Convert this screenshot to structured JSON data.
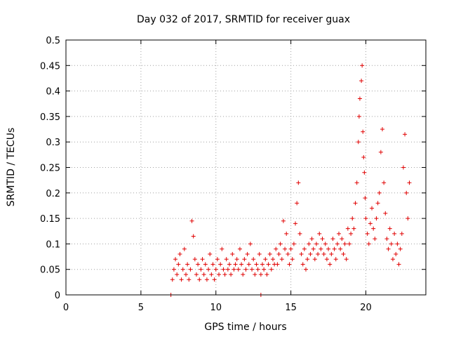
{
  "chart_data": {
    "type": "scatter",
    "title": "Day 032 of 2017, SRMTID for receiver guax",
    "xlabel": "GPS time / hours",
    "ylabel": "SRMTID / TECUs",
    "xlim": [
      0,
      24
    ],
    "ylim": [
      0,
      0.5
    ],
    "x_ticks": [
      0,
      5,
      10,
      15,
      20
    ],
    "y_ticks": [
      0,
      0.05,
      0.1,
      0.15,
      0.2,
      0.25,
      0.3,
      0.35,
      0.4,
      0.45,
      0.5
    ],
    "x_tick_labels": [
      "0",
      "5",
      "10",
      "15",
      "20"
    ],
    "y_tick_labels": [
      "0",
      "0.05",
      "0.1",
      "0.15",
      "0.2",
      "0.25",
      "0.3",
      "0.35",
      "0.4",
      "0.45",
      "0.5"
    ],
    "grid": true,
    "marker": "+",
    "color": "#e00000",
    "series": [
      {
        "name": "SRMTID",
        "points": [
          [
            7.0,
            0.0
          ],
          [
            13.0,
            0.0
          ],
          [
            7.1,
            0.03
          ],
          [
            7.2,
            0.05
          ],
          [
            7.3,
            0.07
          ],
          [
            7.4,
            0.04
          ],
          [
            7.5,
            0.06
          ],
          [
            7.6,
            0.08
          ],
          [
            7.7,
            0.03
          ],
          [
            7.8,
            0.05
          ],
          [
            7.9,
            0.09
          ],
          [
            8.0,
            0.04
          ],
          [
            8.1,
            0.06
          ],
          [
            8.2,
            0.03
          ],
          [
            8.3,
            0.05
          ],
          [
            8.4,
            0.145
          ],
          [
            8.5,
            0.115
          ],
          [
            8.6,
            0.07
          ],
          [
            8.7,
            0.04
          ],
          [
            8.8,
            0.06
          ],
          [
            8.9,
            0.03
          ],
          [
            9.0,
            0.05
          ],
          [
            9.1,
            0.07
          ],
          [
            9.2,
            0.04
          ],
          [
            9.3,
            0.06
          ],
          [
            9.4,
            0.03
          ],
          [
            9.5,
            0.05
          ],
          [
            9.6,
            0.08
          ],
          [
            9.7,
            0.04
          ],
          [
            9.8,
            0.06
          ],
          [
            9.9,
            0.03
          ],
          [
            10.0,
            0.05
          ],
          [
            10.1,
            0.07
          ],
          [
            10.2,
            0.04
          ],
          [
            10.3,
            0.06
          ],
          [
            10.4,
            0.09
          ],
          [
            10.5,
            0.05
          ],
          [
            10.6,
            0.04
          ],
          [
            10.7,
            0.07
          ],
          [
            10.8,
            0.05
          ],
          [
            10.9,
            0.06
          ],
          [
            11.0,
            0.04
          ],
          [
            11.1,
            0.08
          ],
          [
            11.2,
            0.05
          ],
          [
            11.3,
            0.06
          ],
          [
            11.4,
            0.07
          ],
          [
            11.5,
            0.05
          ],
          [
            11.6,
            0.09
          ],
          [
            11.7,
            0.06
          ],
          [
            11.8,
            0.04
          ],
          [
            11.9,
            0.07
          ],
          [
            12.0,
            0.05
          ],
          [
            12.1,
            0.08
          ],
          [
            12.2,
            0.06
          ],
          [
            12.3,
            0.1
          ],
          [
            12.4,
            0.05
          ],
          [
            12.5,
            0.07
          ],
          [
            12.6,
            0.04
          ],
          [
            12.7,
            0.06
          ],
          [
            12.8,
            0.05
          ],
          [
            12.9,
            0.08
          ],
          [
            13.0,
            0.04
          ],
          [
            13.1,
            0.06
          ],
          [
            13.2,
            0.05
          ],
          [
            13.3,
            0.07
          ],
          [
            13.4,
            0.04
          ],
          [
            13.5,
            0.06
          ],
          [
            13.6,
            0.08
          ],
          [
            13.7,
            0.05
          ],
          [
            13.8,
            0.07
          ],
          [
            13.9,
            0.06
          ],
          [
            14.0,
            0.09
          ],
          [
            14.1,
            0.06
          ],
          [
            14.2,
            0.08
          ],
          [
            14.3,
            0.1
          ],
          [
            14.4,
            0.07
          ],
          [
            14.5,
            0.145
          ],
          [
            14.6,
            0.09
          ],
          [
            14.7,
            0.12
          ],
          [
            14.8,
            0.08
          ],
          [
            14.9,
            0.06
          ],
          [
            15.0,
            0.09
          ],
          [
            15.1,
            0.07
          ],
          [
            15.2,
            0.1
          ],
          [
            15.3,
            0.14
          ],
          [
            15.4,
            0.18
          ],
          [
            15.5,
            0.22
          ],
          [
            15.6,
            0.12
          ],
          [
            15.7,
            0.08
          ],
          [
            15.8,
            0.06
          ],
          [
            15.9,
            0.09
          ],
          [
            16.0,
            0.05
          ],
          [
            16.1,
            0.07
          ],
          [
            16.2,
            0.1
          ],
          [
            16.3,
            0.08
          ],
          [
            16.4,
            0.11
          ],
          [
            16.5,
            0.09
          ],
          [
            16.6,
            0.07
          ],
          [
            16.7,
            0.1
          ],
          [
            16.8,
            0.08
          ],
          [
            16.9,
            0.12
          ],
          [
            17.0,
            0.09
          ],
          [
            17.1,
            0.11
          ],
          [
            17.2,
            0.08
          ],
          [
            17.3,
            0.1
          ],
          [
            17.4,
            0.07
          ],
          [
            17.5,
            0.09
          ],
          [
            17.6,
            0.06
          ],
          [
            17.7,
            0.08
          ],
          [
            17.8,
            0.11
          ],
          [
            17.9,
            0.09
          ],
          [
            18.0,
            0.07
          ],
          [
            18.1,
            0.1
          ],
          [
            18.2,
            0.12
          ],
          [
            18.3,
            0.09
          ],
          [
            18.4,
            0.11
          ],
          [
            18.5,
            0.08
          ],
          [
            18.6,
            0.1
          ],
          [
            18.7,
            0.07
          ],
          [
            18.8,
            0.13
          ],
          [
            18.9,
            0.1
          ],
          [
            19.0,
            0.12
          ],
          [
            19.1,
            0.15
          ],
          [
            19.2,
            0.13
          ],
          [
            19.3,
            0.18
          ],
          [
            19.4,
            0.22
          ],
          [
            19.5,
            0.3
          ],
          [
            19.55,
            0.35
          ],
          [
            19.6,
            0.385
          ],
          [
            19.7,
            0.42
          ],
          [
            19.75,
            0.45
          ],
          [
            19.8,
            0.32
          ],
          [
            19.85,
            0.27
          ],
          [
            19.9,
            0.24
          ],
          [
            19.95,
            0.19
          ],
          [
            20.0,
            0.15
          ],
          [
            20.1,
            0.12
          ],
          [
            20.2,
            0.1
          ],
          [
            20.3,
            0.14
          ],
          [
            20.4,
            0.17
          ],
          [
            20.5,
            0.13
          ],
          [
            20.6,
            0.11
          ],
          [
            20.7,
            0.15
          ],
          [
            20.8,
            0.18
          ],
          [
            20.9,
            0.2
          ],
          [
            21.0,
            0.28
          ],
          [
            21.1,
            0.325
          ],
          [
            21.2,
            0.22
          ],
          [
            21.3,
            0.16
          ],
          [
            21.4,
            0.11
          ],
          [
            21.5,
            0.09
          ],
          [
            21.6,
            0.13
          ],
          [
            21.7,
            0.1
          ],
          [
            21.8,
            0.07
          ],
          [
            21.9,
            0.12
          ],
          [
            22.0,
            0.08
          ],
          [
            22.1,
            0.1
          ],
          [
            22.2,
            0.06
          ],
          [
            22.3,
            0.09
          ],
          [
            22.4,
            0.12
          ],
          [
            22.5,
            0.25
          ],
          [
            22.6,
            0.315
          ],
          [
            22.7,
            0.2
          ],
          [
            22.8,
            0.15
          ],
          [
            22.9,
            0.22
          ]
        ]
      }
    ]
  }
}
